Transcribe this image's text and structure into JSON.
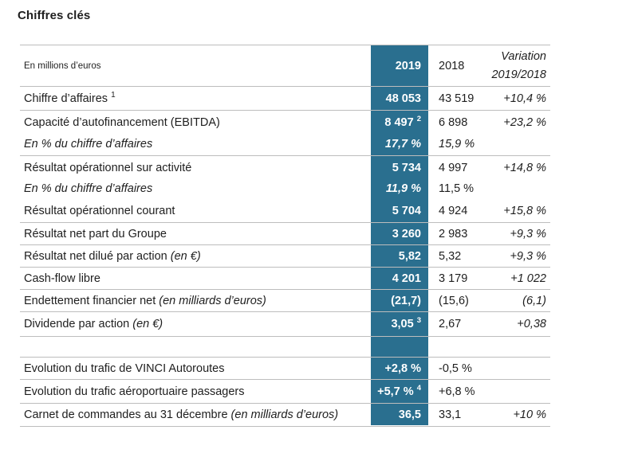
{
  "page": {
    "title": "Chiffres clés"
  },
  "header": {
    "unit": "En millions d’euros",
    "col_2019": "2019",
    "col_2018": "2018",
    "col_var_line1": "Variation",
    "col_var_line2": "2019/2018"
  },
  "rows": [
    {
      "label": "Chiffre d’affaires",
      "label_note": "1",
      "label_suffix": "",
      "v2019": "48 053",
      "v2019_note": "",
      "v2018": "43 519",
      "variation": "+10,4 %"
    },
    {
      "label": "Capacité d’autofinancement (EBITDA)",
      "label_note": "",
      "label_suffix": "",
      "v2019": "8 497",
      "v2019_note": "2",
      "v2018": "6 898",
      "variation": "+23,2 %"
    },
    {
      "label": "En % du chiffre d’affaires",
      "label_note": "",
      "label_suffix": "",
      "v2019": "17,7 %",
      "v2019_note": "",
      "v2018": "15,9 %",
      "variation": ""
    },
    {
      "label": "Résultat opérationnel sur activité",
      "label_note": "",
      "label_suffix": "",
      "v2019": "5 734",
      "v2019_note": "",
      "v2018": "4 997",
      "variation": "+14,8 %"
    },
    {
      "label": "En % du chiffre d’affaires",
      "label_note": "",
      "label_suffix": "",
      "v2019": "11,9 %",
      "v2019_note": "",
      "v2018": "11,5 %",
      "variation": ""
    },
    {
      "label": "Résultat opérationnel courant",
      "label_note": "",
      "label_suffix": "",
      "v2019": "5 704",
      "v2019_note": "",
      "v2018": "4 924",
      "variation": "+15,8 %"
    },
    {
      "label": "Résultat net part du Groupe",
      "label_note": "",
      "label_suffix": "",
      "v2019": "3 260",
      "v2019_note": "",
      "v2018": "2 983",
      "variation": "+9,3 %"
    },
    {
      "label": "Résultat net dilué par action",
      "label_note": "",
      "label_suffix": "(en €)",
      "v2019": "5,82",
      "v2019_note": "",
      "v2018": "5,32",
      "variation": "+9,3 %"
    },
    {
      "label": "Cash-flow libre",
      "label_note": "",
      "label_suffix": "",
      "v2019": "4 201",
      "v2019_note": "",
      "v2018": "3 179",
      "variation": "+1 022"
    },
    {
      "label": "Endettement financier net",
      "label_note": "",
      "label_suffix": "(en milliards d’euros)",
      "v2019": "(21,7)",
      "v2019_note": "",
      "v2018": "(15,6)",
      "variation": "(6,1)"
    },
    {
      "label": "Dividende par action",
      "label_note": "",
      "label_suffix": "(en €)",
      "v2019": "3,05",
      "v2019_note": "3",
      "v2018": "2,67",
      "variation": "+0,38"
    },
    {
      "label": "Evolution du trafic de VINCI Autoroutes",
      "label_note": "",
      "label_suffix": "",
      "v2019": "+2,8 %",
      "v2019_note": "",
      "v2018": "-0,5 %",
      "variation": ""
    },
    {
      "label": "Evolution du trafic aéroportuaire passagers",
      "label_note": "",
      "label_suffix": "",
      "v2019": "+5,7 %",
      "v2019_note": "4",
      "v2018": "+6,8 %",
      "variation": ""
    },
    {
      "label": "Carnet de commandes au 31 décembre",
      "label_note": "",
      "label_suffix": "(en milliards d’euros)",
      "v2019": "36,5",
      "v2019_note": "",
      "v2018": "33,1",
      "variation": "+10 %"
    }
  ]
}
